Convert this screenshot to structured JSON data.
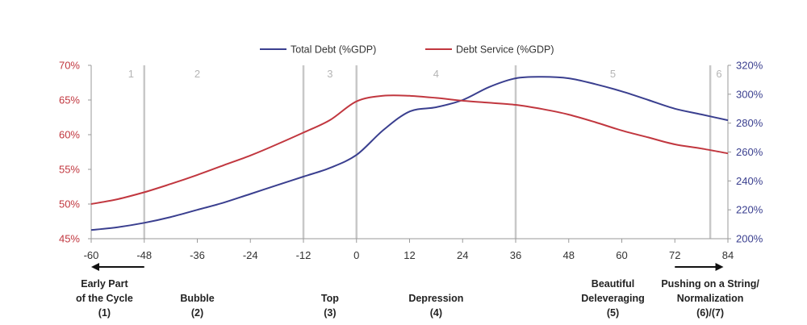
{
  "chart_data": {
    "type": "line",
    "title": "",
    "x": [
      -60,
      -54,
      -48,
      -42,
      -36,
      -30,
      -24,
      -18,
      -12,
      -6,
      0,
      6,
      12,
      18,
      24,
      30,
      36,
      42,
      48,
      54,
      60,
      66,
      72,
      78,
      84
    ],
    "xticks": [
      -60,
      -48,
      -36,
      -24,
      -12,
      0,
      12,
      24,
      36,
      48,
      60,
      72,
      84
    ],
    "xlim": [
      -60,
      84
    ],
    "ylim_left": [
      45,
      70
    ],
    "yticks_left": [
      "45%",
      "50%",
      "55%",
      "60%",
      "65%",
      "70%"
    ],
    "ylim_right": [
      200,
      320
    ],
    "yticks_right": [
      "200%",
      "220%",
      "240%",
      "260%",
      "280%",
      "300%",
      "320%"
    ],
    "series": [
      {
        "name": "Total Debt (%GDP)",
        "axis": "right",
        "color": "#3a3f8f",
        "values": [
          206,
          208,
          211,
          215,
          220,
          225,
          231,
          237,
          243,
          249,
          258,
          275,
          288,
          291,
          296,
          305,
          311,
          312,
          311,
          307,
          302,
          296,
          290,
          286,
          282
        ]
      },
      {
        "name": "Debt Service (%GDP)",
        "axis": "left",
        "color": "#c1373f",
        "values": [
          50.0,
          50.7,
          51.7,
          52.9,
          54.2,
          55.6,
          57.0,
          58.6,
          60.3,
          62.1,
          64.8,
          65.6,
          65.6,
          65.3,
          64.9,
          64.6,
          64.3,
          63.7,
          62.9,
          61.8,
          60.6,
          59.6,
          58.6,
          58.0,
          57.3
        ]
      }
    ],
    "phase_dividers": [
      -48,
      -12,
      0,
      36,
      80
    ],
    "phases": [
      {
        "label": "1",
        "x": -51
      },
      {
        "label": "2",
        "x": -36
      },
      {
        "label": "3",
        "x": -6
      },
      {
        "label": "4",
        "x": 18
      },
      {
        "label": "5",
        "x": 58
      },
      {
        "label": "6",
        "x": 82
      }
    ],
    "grid": false,
    "legend_position": "top-center"
  },
  "stages": [
    {
      "lines": [
        "Early Part",
        "of the Cycle",
        "(1)"
      ],
      "x": -57
    },
    {
      "lines": [
        "Bubble",
        "(2)"
      ],
      "x": -36
    },
    {
      "lines": [
        "Top",
        "(3)"
      ],
      "x": -6
    },
    {
      "lines": [
        "Depression",
        "(4)"
      ],
      "x": 18
    },
    {
      "lines": [
        "Beautiful",
        "Deleveraging",
        "(5)"
      ],
      "x": 58
    },
    {
      "lines": [
        "Pushing on a String/",
        "Normalization",
        "(6)/(7)"
      ],
      "x": 80
    }
  ],
  "arrows": [
    {
      "direction": "left",
      "from": -48,
      "to": -60
    },
    {
      "direction": "right",
      "from": 72,
      "to": 83
    }
  ]
}
